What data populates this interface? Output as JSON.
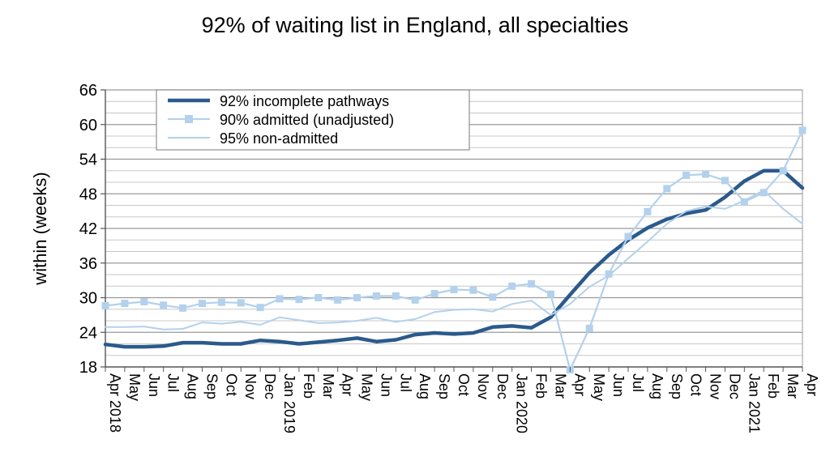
{
  "chart_data": {
    "type": "line",
    "title": "92% of waiting list in England, all specialties",
    "ylabel": "within  (weeks)",
    "xlabel": "",
    "ylim": [
      18,
      66
    ],
    "yticks": [
      18,
      24,
      30,
      36,
      42,
      48,
      54,
      60,
      66
    ],
    "grid": true,
    "legend_position": "top-left",
    "categories": [
      "Apr 2018",
      "May",
      "Jun",
      "Jul",
      "Aug",
      "Sep",
      "Oct",
      "Nov",
      "Dec",
      "Jan 2019",
      "Feb",
      "Mar",
      "Apr",
      "May",
      "Jun",
      "Jul",
      "Aug",
      "Sep",
      "Oct",
      "Nov",
      "Dec",
      "Jan 2020",
      "Feb",
      "Mar",
      "Apr",
      "May",
      "Jun",
      "Jul",
      "Aug",
      "Sep",
      "Oct",
      "Nov",
      "Dec",
      "Jan 2021",
      "Feb",
      "Mar",
      "Apr"
    ],
    "series": [
      {
        "name": "92% incomplete pathways",
        "color": "#2b5a8c",
        "marker": "none",
        "values": [
          21.9,
          21.5,
          21.5,
          21.6,
          22.2,
          22.2,
          22.0,
          22.0,
          22.6,
          22.4,
          22.0,
          22.3,
          22.6,
          23.0,
          22.4,
          22.7,
          23.6,
          23.9,
          23.7,
          23.9,
          24.9,
          25.1,
          24.8,
          26.6,
          30.5,
          34.3,
          37.4,
          40.0,
          42.1,
          43.6,
          44.6,
          45.2,
          47.4,
          50.2,
          52.0,
          52.0,
          49.0
        ]
      },
      {
        "name": "90% admitted (unadjusted)",
        "color": "#b3d1ec",
        "marker": "square",
        "values": [
          28.6,
          29.0,
          29.3,
          28.7,
          28.2,
          29.0,
          29.2,
          29.1,
          28.3,
          29.8,
          29.7,
          30.0,
          29.6,
          30.0,
          30.3,
          30.3,
          29.6,
          30.7,
          31.4,
          31.3,
          30.1,
          32.0,
          32.4,
          30.6,
          17.5,
          24.7,
          34.1,
          40.6,
          44.9,
          48.9,
          51.2,
          51.4,
          50.3,
          46.6,
          48.2,
          52.0,
          59.0
        ]
      },
      {
        "name": "95% non-admitted",
        "color": "#b3d1ec",
        "marker": "none",
        "values": [
          24.9,
          24.9,
          25.0,
          24.5,
          24.6,
          25.7,
          25.5,
          25.8,
          25.3,
          26.6,
          26.1,
          25.6,
          25.7,
          26.0,
          26.5,
          25.8,
          26.3,
          27.5,
          27.9,
          28.0,
          27.6,
          28.9,
          29.5,
          27.0,
          28.9,
          31.9,
          33.8,
          36.8,
          39.7,
          42.8,
          45.0,
          45.8,
          45.4,
          46.8,
          48.6,
          45.4,
          42.8
        ]
      }
    ]
  }
}
